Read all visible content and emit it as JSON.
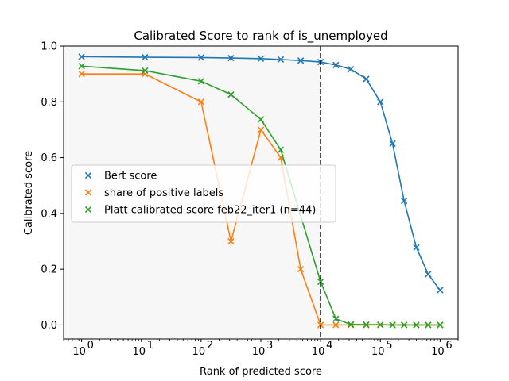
{
  "chart_data": {
    "type": "line",
    "title": "Calibrated Score to rank of is_unemployed",
    "xlabel": "Rank of predicted score",
    "ylabel": "Calibrated score",
    "x_scale": "log",
    "xlim": [
      0.5,
      2000000
    ],
    "ylim": [
      -0.05,
      1.0
    ],
    "x_ticks": [
      1,
      10,
      100,
      1000,
      10000,
      100000,
      1000000
    ],
    "x_tick_labels": [
      "10",
      "10",
      "10",
      "10",
      "10",
      "10",
      "10"
    ],
    "x_tick_exponents": [
      "0",
      "1",
      "2",
      "3",
      "4",
      "5",
      "6"
    ],
    "y_ticks": [
      0.0,
      0.2,
      0.4,
      0.6,
      0.8,
      1.0
    ],
    "y_tick_labels": [
      "0.0",
      "0.2",
      "0.4",
      "0.6",
      "0.8",
      "1.0"
    ],
    "shaded_region_x": [
      0.5,
      10000
    ],
    "shaded_color": "#f7f7f7",
    "vline_x": 10000,
    "legend_position": "center-left",
    "series": [
      {
        "name": "Bert score",
        "color": "#1f77b4",
        "x": [
          1,
          11.5,
          100,
          316,
          1000,
          2150,
          4640,
          10000,
          18000,
          32000,
          58000,
          100000,
          160000,
          250000,
          400000,
          630000,
          1000000
        ],
        "y": [
          0.962,
          0.96,
          0.959,
          0.957,
          0.955,
          0.952,
          0.948,
          0.943,
          0.932,
          0.917,
          0.882,
          0.8,
          0.65,
          0.445,
          0.278,
          0.182,
          0.125
        ]
      },
      {
        "name": "share of positive labels",
        "color": "#ff7f0e",
        "x": [
          1,
          11.5,
          100,
          316,
          1000,
          2150,
          4640,
          10000,
          18000,
          32000,
          58000,
          100000,
          160000,
          250000,
          400000,
          630000,
          1000000
        ],
        "y": [
          0.9,
          0.9,
          0.8,
          0.3,
          0.7,
          0.6,
          0.2,
          0.0,
          0.0,
          0.0,
          0.0,
          0.0,
          0.0,
          0.0,
          0.0,
          0.0,
          0.0
        ]
      },
      {
        "name": "Platt calibrated score feb22_iter1 (n=44)",
        "color": "#2ca02c",
        "x": [
          1,
          11.5,
          100,
          316,
          1000,
          2150,
          10000,
          18000,
          32000,
          58000,
          100000,
          160000,
          250000,
          400000,
          630000,
          1000000
        ],
        "y": [
          0.928,
          0.912,
          0.874,
          0.826,
          0.737,
          0.628,
          0.155,
          0.022,
          0.002,
          0.001,
          0.001,
          0.0,
          0.0,
          0.0,
          0.0,
          0.0
        ]
      }
    ]
  }
}
